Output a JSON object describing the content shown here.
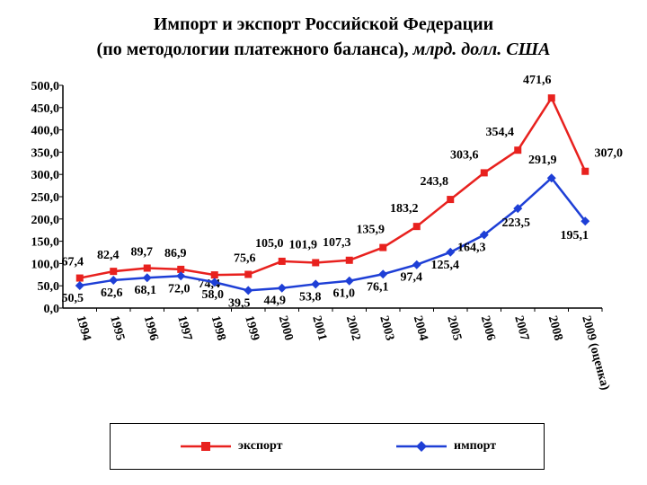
{
  "title_line1": "Импорт и экспорт Российской Федерации",
  "title_line2_plain": "(по методологии платежного баланса), ",
  "title_line2_italic": "млрд. долл. США",
  "chart_data": {
    "type": "line",
    "categories": [
      "1994",
      "1995",
      "1996",
      "1997",
      "1998",
      "1999",
      "2000",
      "2001",
      "2002",
      "2003",
      "2004",
      "2005",
      "2006",
      "2007",
      "2008",
      "2009 (оценка)"
    ],
    "ylim": [
      0,
      500
    ],
    "yticks": [
      "0,0",
      "50,0",
      "100,0",
      "150,0",
      "200,0",
      "250,0",
      "300,0",
      "350,0",
      "400,0",
      "450,0",
      "500,0"
    ],
    "series": [
      {
        "name": "экспорт",
        "color": "#e8211e",
        "marker": "square",
        "values": [
          67.4,
          82.4,
          89.7,
          86.9,
          74.4,
          75.6,
          105.0,
          101.9,
          107.3,
          135.9,
          183.2,
          243.8,
          303.6,
          354.4,
          471.6,
          307.0
        ],
        "labels": [
          "67,4",
          "82,4",
          "89,7",
          "86,9",
          "74,4",
          "75,6",
          "105,0",
          "101,9",
          "107,3",
          "135,9",
          "183,2",
          "243,8",
          "303,6",
          "354,4",
          "471,6",
          "307,0"
        ]
      },
      {
        "name": "импорт",
        "color": "#1e3fd6",
        "marker": "diamond",
        "values": [
          50.5,
          62.6,
          68.1,
          72.0,
          58.0,
          39.5,
          44.9,
          53.8,
          61.0,
          76.1,
          97.4,
          125.4,
          164.3,
          223.5,
          291.9,
          195.1
        ],
        "labels": [
          "50,5",
          "62,6",
          "68,1",
          "72,0",
          "58,0",
          "39,5",
          "44,9",
          "53,8",
          "61,0",
          "76,1",
          "97,4",
          "125,4",
          "164,3",
          "223,5",
          "291,9",
          "195,1"
        ]
      }
    ],
    "legend_position": "bottom",
    "grid": false
  }
}
